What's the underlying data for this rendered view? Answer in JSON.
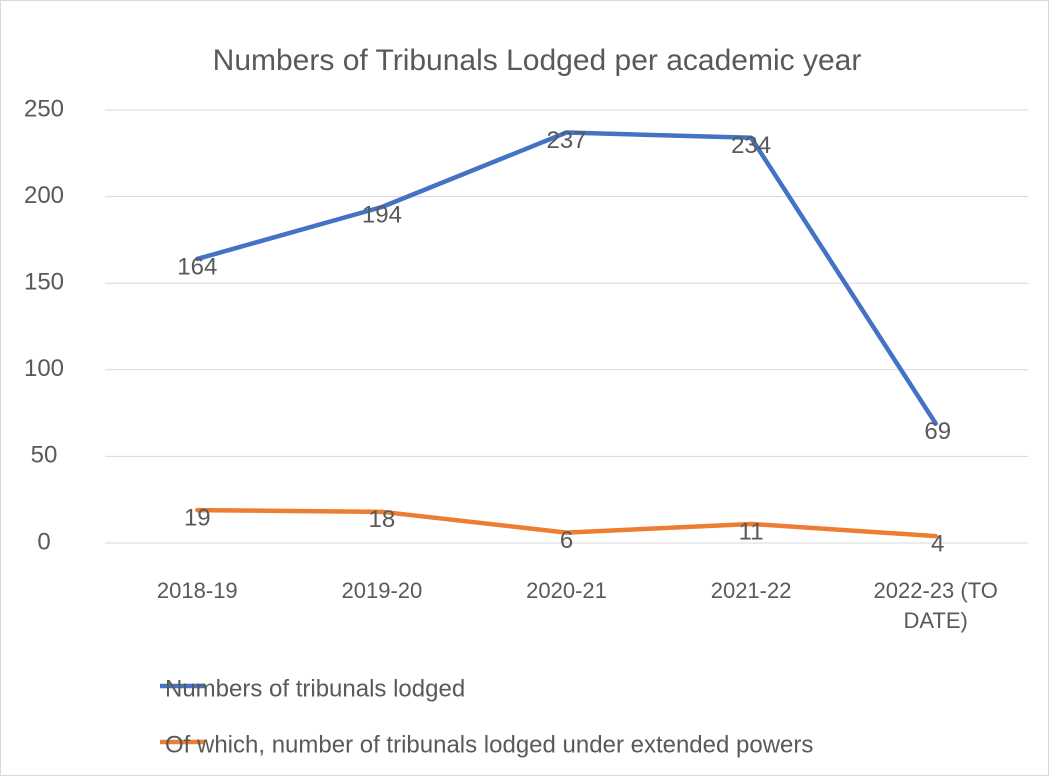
{
  "chart_data": {
    "type": "line",
    "title": "Numbers of Tribunals Lodged per academic year",
    "categories": [
      "2018-19",
      "2019-20",
      "2020-21",
      "2021-22",
      "2022-23 (TO DATE)"
    ],
    "series": [
      {
        "name": "Numbers of tribunals lodged",
        "color": "#4472c4",
        "values": [
          164,
          194,
          237,
          234,
          69
        ]
      },
      {
        "name": "Of which, number of tribunals lodged under extended powers",
        "color": "#ed7d31",
        "values": [
          19,
          18,
          6,
          11,
          4
        ]
      }
    ],
    "ylim": [
      0,
      250
    ],
    "yticks": [
      0,
      50,
      100,
      150,
      200,
      250
    ],
    "grid": true,
    "legend": "bottom"
  }
}
